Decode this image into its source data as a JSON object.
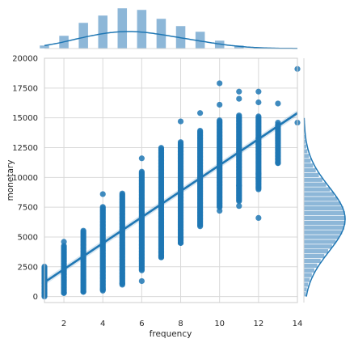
{
  "chart_data": {
    "type": "scatter",
    "subtype": "jointplot with regression line and marginal histograms",
    "xlabel": "frequency",
    "ylabel": "monetary",
    "xlim": [
      1,
      14
    ],
    "ylim": [
      -500,
      20000
    ],
    "x_ticks": [
      2,
      4,
      6,
      8,
      10,
      12,
      14
    ],
    "x_tick_labels": [
      "2",
      "4",
      "6",
      "8",
      "10",
      "12",
      "14"
    ],
    "y_ticks": [
      0,
      2500,
      5000,
      7500,
      10000,
      12500,
      15000,
      17500,
      20000
    ],
    "y_tick_labels": [
      "0",
      "2500",
      "5000",
      "7500",
      "10000",
      "12500",
      "15000",
      "17500",
      "20000"
    ],
    "grid": true,
    "regression": {
      "x": [
        1,
        14
      ],
      "y": [
        1200,
        15400
      ],
      "ci_halfwidth": 250
    },
    "columns": [
      {
        "x": 1,
        "min": 0,
        "max": 2600
      },
      {
        "x": 2,
        "min": 300,
        "max": 4300
      },
      {
        "x": 3,
        "min": 400,
        "max": 5600
      },
      {
        "x": 4,
        "min": 500,
        "max": 7600
      },
      {
        "x": 5,
        "min": 1000,
        "max": 8700
      },
      {
        "x": 6,
        "min": 2200,
        "max": 10500
      },
      {
        "x": 7,
        "min": 3300,
        "max": 12500
      },
      {
        "x": 8,
        "min": 4500,
        "max": 13000
      },
      {
        "x": 9,
        "min": 6000,
        "max": 14000
      },
      {
        "x": 10,
        "min": 7500,
        "max": 14800
      },
      {
        "x": 11,
        "min": 8000,
        "max": 15200
      },
      {
        "x": 12,
        "min": 9000,
        "max": 15200
      },
      {
        "x": 13,
        "min": 11200,
        "max": 14500
      }
    ],
    "extra_points": [
      [
        6,
        11600
      ],
      [
        8,
        14700
      ],
      [
        8,
        4900
      ],
      [
        9,
        15400
      ],
      [
        9,
        5900
      ],
      [
        10,
        17900
      ],
      [
        10,
        7200
      ],
      [
        10,
        16100
      ],
      [
        11,
        17200
      ],
      [
        11,
        16600
      ],
      [
        11,
        7600
      ],
      [
        11,
        9300
      ],
      [
        12,
        17200
      ],
      [
        12,
        16300
      ],
      [
        12,
        13300
      ],
      [
        12,
        12800
      ],
      [
        12,
        10300
      ],
      [
        12,
        9900
      ],
      [
        12,
        6600
      ],
      [
        13,
        16200
      ],
      [
        13,
        11200
      ],
      [
        13,
        14600
      ],
      [
        14,
        19100
      ],
      [
        14,
        14600
      ],
      [
        6,
        1300
      ],
      [
        5,
        1100
      ],
      [
        4,
        600
      ],
      [
        3,
        400
      ],
      [
        2,
        300
      ],
      [
        7,
        3300
      ],
      [
        8,
        4500
      ],
      [
        4,
        8600
      ],
      [
        2,
        4600
      ]
    ],
    "marginal_x": {
      "type": "histogram+kde",
      "bins": [
        {
          "x": 1,
          "height": 0.08
        },
        {
          "x": 2,
          "height": 0.32
        },
        {
          "x": 3,
          "height": 0.64
        },
        {
          "x": 4,
          "height": 0.82
        },
        {
          "x": 5,
          "height": 1.0
        },
        {
          "x": 6,
          "height": 0.96
        },
        {
          "x": 7,
          "height": 0.74
        },
        {
          "x": 8,
          "height": 0.56
        },
        {
          "x": 9,
          "height": 0.42
        },
        {
          "x": 10,
          "height": 0.2
        },
        {
          "x": 11,
          "height": 0.08
        },
        {
          "x": 12,
          "height": 0.02
        },
        {
          "x": 13,
          "height": 0.01
        }
      ]
    },
    "marginal_y": {
      "type": "histogram+kde",
      "bin_width": 400,
      "peak": 6500,
      "spread": 2600,
      "range": [
        0,
        15000
      ]
    },
    "colors": {
      "points": "#1f77b4",
      "line": "#1f77b4",
      "hist": "#8db7d8",
      "grid": "#d9d9d9",
      "axis": "#cccccc"
    }
  }
}
